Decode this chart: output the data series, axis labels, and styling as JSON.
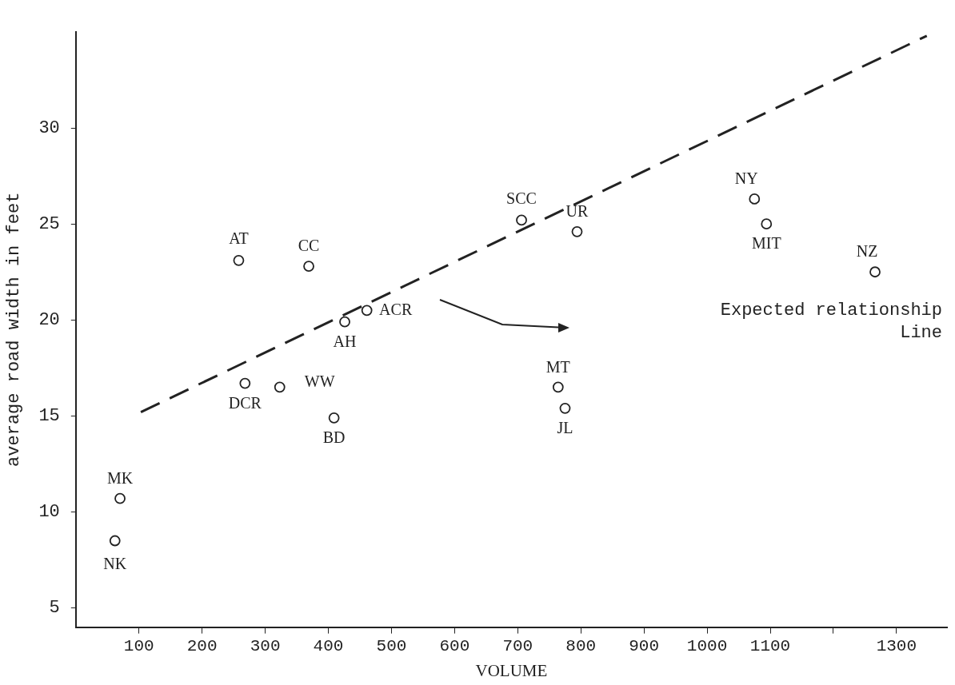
{
  "chart_data": {
    "type": "scatter",
    "xlabel": "VOLUME",
    "ylabel": "average road width in feet",
    "xlim": [
      0,
      1380
    ],
    "ylim": [
      4,
      35
    ],
    "xticks": [
      100,
      200,
      300,
      400,
      500,
      600,
      700,
      800,
      900,
      1000,
      1100,
      {
        "value": 1200,
        "label": null
      },
      1300
    ],
    "yticks": [
      5,
      10,
      15,
      20,
      25,
      30
    ],
    "grid": false,
    "legend": false,
    "marker": "circle",
    "series": [
      {
        "color": "#222222",
        "x": [
          62,
          70,
          258,
          369,
          268,
          323,
          409,
          426,
          461,
          706,
          794,
          764,
          775,
          1075,
          1094,
          1266
        ],
        "values": [
          8.5,
          10.7,
          23.1,
          22.8,
          16.7,
          16.5,
          14.9,
          19.9,
          20.5,
          25.2,
          24.6,
          16.5,
          15.4,
          26.3,
          25.0,
          22.5
        ]
      },
      {
        "type": "line",
        "color": "#222222",
        "line_style": "dashed",
        "marker": "none",
        "x": [
          103,
          1348
        ],
        "values": [
          15.2,
          34.8
        ]
      }
    ],
    "annotations": [
      {
        "text": "NK",
        "x": 62,
        "y": 8.5
      },
      {
        "text": "MK",
        "x": 70,
        "y": 10.7
      },
      {
        "text": "AT",
        "x": 258,
        "y": 23.1
      },
      {
        "text": "CC",
        "x": 369,
        "y": 22.8
      },
      {
        "text": "DCR",
        "x": 268,
        "y": 16.7
      },
      {
        "text": "WW",
        "x": 323,
        "y": 16.5
      },
      {
        "text": "BD",
        "x": 409,
        "y": 14.9
      },
      {
        "text": "AH",
        "x": 426,
        "y": 19.9
      },
      {
        "text": "ACR",
        "x": 461,
        "y": 20.5
      },
      {
        "text": "SCC",
        "x": 706,
        "y": 25.2
      },
      {
        "text": "UR",
        "x": 794,
        "y": 24.6
      },
      {
        "text": "MT",
        "x": 764,
        "y": 16.5
      },
      {
        "text": "JL",
        "x": 775,
        "y": 15.4
      },
      {
        "text": "NY",
        "x": 1075,
        "y": 26.3
      },
      {
        "text": "MIT",
        "x": 1094,
        "y": 25.0
      },
      {
        "text": "NZ",
        "x": 1266,
        "y": 22.5
      },
      "Expected relationship\nLine"
    ]
  }
}
